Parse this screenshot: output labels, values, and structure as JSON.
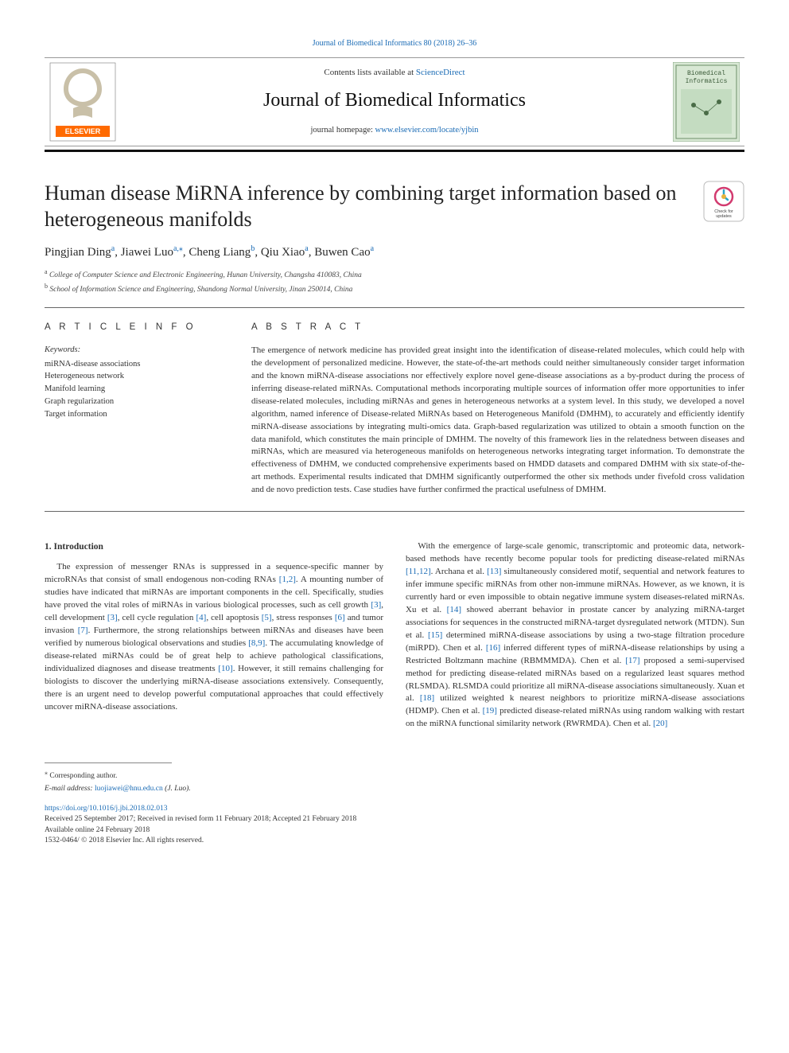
{
  "top_link": "Journal of Biomedical Informatics 80 (2018) 26–36",
  "header": {
    "contents_prefix": "Contents lists available at ",
    "contents_link": "ScienceDirect",
    "journal_title": "Journal of Biomedical Informatics",
    "homepage_prefix": "journal homepage: ",
    "homepage_url": "www.elsevier.com/locate/yjbin",
    "cover_text_top": "Biomedical",
    "cover_text_bottom": "Informatics",
    "elsevier_label": "ELSEVIER"
  },
  "article": {
    "title": "Human disease MiRNA inference by combining target information based on heterogeneous manifolds",
    "check_updates_label": "Check for updates"
  },
  "authors": [
    {
      "name": "Pingjian Ding",
      "aff": "a"
    },
    {
      "name": "Jiawei Luo",
      "aff": "a,",
      "corr": "⁎"
    },
    {
      "name": "Cheng Liang",
      "aff": "b"
    },
    {
      "name": "Qiu Xiao",
      "aff": "a"
    },
    {
      "name": "Buwen Cao",
      "aff": "a"
    }
  ],
  "affiliations": [
    {
      "key": "a",
      "text": "College of Computer Science and Electronic Engineering, Hunan University, Changsha 410083, China"
    },
    {
      "key": "b",
      "text": "School of Information Science and Engineering, Shandong Normal University, Jinan 250014, China"
    }
  ],
  "info": {
    "heading": "A R T I C L E  I N F O",
    "kw_label": "Keywords:",
    "keywords": [
      "miRNA-disease associations",
      "Heterogeneous network",
      "Manifold learning",
      "Graph regularization",
      "Target information"
    ]
  },
  "abstract": {
    "heading": "A B S T R A C T",
    "text": "The emergence of network medicine has provided great insight into the identification of disease-related molecules, which could help with the development of personalized medicine. However, the state-of-the-art methods could neither simultaneously consider target information and the known miRNA-disease associations nor effectively explore novel gene-disease associations as a by-product during the process of inferring disease-related miRNAs. Computational methods incorporating multiple sources of information offer more opportunities to infer disease-related molecules, including miRNAs and genes in heterogeneous networks at a system level. In this study, we developed a novel algorithm, named inference of Disease-related MiRNAs based on Heterogeneous Manifold (DMHM), to accurately and efficiently identify miRNA-disease associations by integrating multi-omics data. Graph-based regularization was utilized to obtain a smooth function on the data manifold, which constitutes the main principle of DMHM. The novelty of this framework lies in the relatedness between diseases and miRNAs, which are measured via heterogeneous manifolds on heterogeneous networks integrating target information. To demonstrate the effectiveness of DMHM, we conducted comprehensive experiments based on HMDD datasets and compared DMHM with six state-of-the-art methods. Experimental results indicated that DMHM significantly outperformed the other six methods under fivefold cross validation and de novo prediction tests. Case studies have further confirmed the practical usefulness of DMHM."
  },
  "introduction": {
    "heading": "1. Introduction",
    "p1_a": "The expression of messenger RNAs is suppressed in a sequence-specific manner by microRNAs that consist of small endogenous non-coding RNAs ",
    "c1": "[1,2]",
    "p1_b": ". A mounting number of studies have indicated that miRNAs are important components in the cell. Specifically, studies have proved the vital roles of miRNAs in various biological processes, such as cell growth ",
    "c2": "[3]",
    "p1_c": ", cell development ",
    "c3": "[3]",
    "p1_d": ", cell cycle regulation ",
    "c4": "[4]",
    "p1_e": ", cell apoptosis ",
    "c5": "[5]",
    "p1_f": ", stress responses ",
    "c6": "[6]",
    "p1_g": " and tumor invasion ",
    "c7": "[7]",
    "p1_h": ". Furthermore, the strong relationships between miRNAs and diseases have been verified by numerous biological observations and studies ",
    "c8": "[8,9]",
    "p1_i": ". The accumulating knowledge of disease-related miRNAs could be of great help to achieve pathological classifications, individualized diagnoses and disease treatments ",
    "c9": "[10]",
    "p1_j": ". However, it still remains challenging for biologists to discover the underlying miRNA-disease associations extensively. Consequently, there is an urgent need to develop powerful computational approaches that could effectively uncover miRNA-disease associations.",
    "p2_a": "With the emergence of large-scale genomic, transcriptomic and proteomic data, network-based methods have recently become popular tools for predicting disease-related miRNAs ",
    "c10": "[11,12]",
    "p2_b": ". Archana et al. ",
    "c11": "[13]",
    "p2_c": " simultaneously considered motif, sequential and network features to infer immune specific miRNAs from other non-immune miRNAs. However, as we known, it is currently hard or even impossible to obtain negative immune system diseases-related miRNAs. Xu et al. ",
    "c12": "[14]",
    "p2_d": " showed aberrant behavior in prostate cancer by analyzing miRNA-target associations for sequences in the constructed miRNA-target dysregulated network (MTDN). Sun et al. ",
    "c13": "[15]",
    "p2_e": " determined miRNA-disease associations by using a two-stage filtration procedure (miRPD). Chen et al. ",
    "c14": "[16]",
    "p2_f": " inferred different types of miRNA-disease relationships by using a Restricted Boltzmann machine (RBMMMDA). Chen et al. ",
    "c15": "[17]",
    "p2_g": " proposed a semi-supervised method for predicting disease-related miRNAs based on a regularized least squares method (RLSMDA). RLSMDA could prioritize all miRNA-disease associations simultaneously. Xuan et al. ",
    "c16": "[18]",
    "p2_h": " utilized weighted k nearest neighbors to prioritize miRNA-disease associations (HDMP). Chen et al. ",
    "c17": "[19]",
    "p2_i": " predicted disease-related miRNAs using random walking with restart on the miRNA functional similarity network (RWRMDA). Chen et al. ",
    "c18": "[20]"
  },
  "footer": {
    "corr": "Corresponding author.",
    "email_label": "E-mail address: ",
    "email": "luojiawei@hnu.edu.cn",
    "email_suffix": " (J. Luo).",
    "doi": "https://doi.org/10.1016/j.jbi.2018.02.013",
    "history": "Received 25 September 2017; Received in revised form 11 February 2018; Accepted 21 February 2018",
    "online": "Available online 24 February 2018",
    "copyright": "1532-0464/ © 2018 Elsevier Inc. All rights reserved."
  },
  "colors": {
    "link": "#1a6bb5",
    "text": "#333333",
    "rule": "#111111",
    "orange": "#ff6a00"
  }
}
